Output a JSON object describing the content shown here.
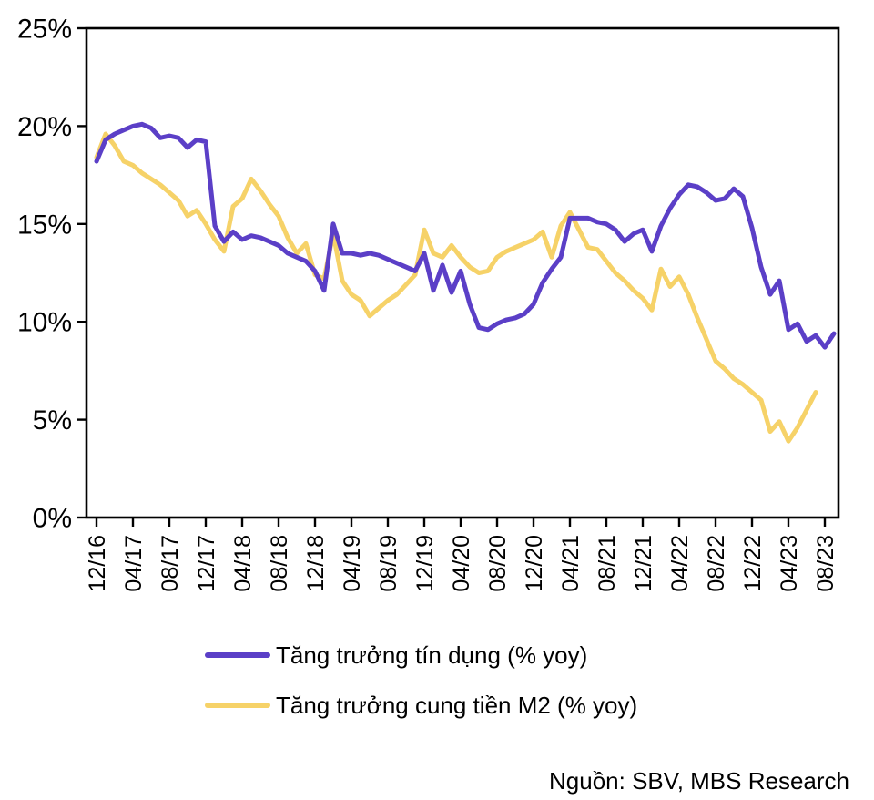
{
  "chart_data": {
    "type": "line",
    "title": "",
    "xlabel": "",
    "ylabel": "",
    "x_start": "12/16",
    "x_frequency": "monthly",
    "x_tick_labels": [
      "12/16",
      "04/17",
      "08/17",
      "12/17",
      "04/18",
      "08/18",
      "12/18",
      "04/19",
      "08/19",
      "12/19",
      "04/20",
      "08/20",
      "12/20",
      "04/21",
      "08/21",
      "12/21",
      "04/22",
      "08/22",
      "12/22",
      "04/23",
      "08/23"
    ],
    "y_tick_labels": [
      "0%",
      "5%",
      "10%",
      "15%",
      "20%",
      "25%"
    ],
    "ylim": [
      0,
      25
    ],
    "grid": false,
    "legend_position": "bottom-left",
    "series": [
      {
        "name": "Tăng trưởng tín dụng (% yoy)",
        "color": "#5B3FC7",
        "values": [
          18.2,
          19.3,
          19.6,
          19.8,
          20.0,
          20.1,
          19.9,
          19.4,
          19.5,
          19.4,
          18.9,
          19.3,
          19.2,
          14.9,
          14.1,
          14.6,
          14.2,
          14.4,
          14.3,
          14.1,
          13.9,
          13.5,
          13.3,
          13.1,
          12.6,
          11.6,
          15.0,
          13.5,
          13.5,
          13.4,
          13.5,
          13.4,
          13.2,
          13.0,
          12.8,
          12.6,
          13.5,
          11.6,
          12.9,
          11.5,
          12.6,
          10.9,
          9.7,
          9.6,
          9.9,
          10.1,
          10.2,
          10.4,
          10.9,
          12.0,
          12.7,
          13.3,
          15.3,
          15.3,
          15.3,
          15.1,
          15.0,
          14.7,
          14.1,
          14.5,
          14.7,
          13.6,
          14.9,
          15.8,
          16.5,
          17.0,
          16.9,
          16.6,
          16.2,
          16.3,
          16.8,
          16.4,
          14.8,
          12.8,
          11.4,
          12.1,
          9.6,
          9.9,
          9.0,
          9.3,
          8.7,
          9.4
        ]
      },
      {
        "name": "Tăng trưởng cung tiền M2 (% yoy)",
        "color": "#F6D268",
        "values": [
          18.4,
          19.6,
          19.0,
          18.2,
          18.0,
          17.6,
          17.3,
          17.0,
          16.6,
          16.2,
          15.4,
          15.7,
          15.0,
          14.2,
          13.6,
          15.9,
          16.3,
          17.3,
          16.7,
          16.0,
          15.4,
          14.3,
          13.5,
          14.0,
          12.4,
          12.2,
          14.5,
          12.1,
          11.4,
          11.1,
          10.3,
          10.7,
          11.1,
          11.4,
          11.9,
          12.4,
          14.7,
          13.5,
          13.3,
          13.9,
          13.3,
          12.8,
          12.5,
          12.6,
          13.3,
          13.6,
          13.8,
          14.0,
          14.2,
          14.6,
          13.3,
          14.9,
          15.6,
          14.7,
          13.8,
          13.7,
          13.1,
          12.5,
          12.1,
          11.6,
          11.2,
          10.6,
          12.7,
          11.8,
          12.3,
          11.4,
          10.2,
          9.1,
          8.0,
          7.6,
          7.1,
          6.8,
          6.4,
          6.0,
          4.4,
          4.9,
          3.9,
          4.6,
          5.5,
          6.4
        ]
      }
    ]
  },
  "legend": {
    "credit_label": "Tăng trưởng tín dụng (% yoy)",
    "m2_label": "Tăng trưởng cung tiền M2 (% yoy)"
  },
  "source_note": "Nguồn: SBV, MBS Research",
  "colors": {
    "credit_line": "#5B3FC7",
    "m2_line": "#F6D268",
    "axis": "#000000",
    "background": "#FFFFFF"
  }
}
